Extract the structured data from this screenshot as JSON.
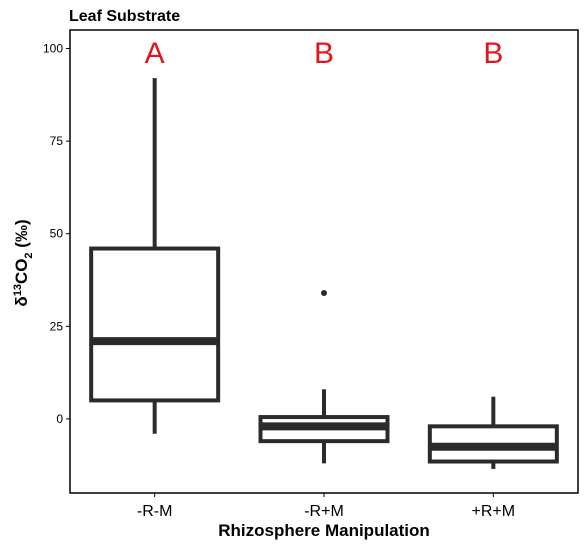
{
  "chart_data": {
    "type": "boxplot",
    "title": "Leaf Substrate",
    "xlabel": "Rhizosphere Manipulation",
    "ylabel": {
      "prefix": "δ",
      "sup": "13",
      "mid": "CO",
      "sub": "2",
      "suffix": " (‰)"
    },
    "ylim": [
      -20,
      105
    ],
    "yticks": [
      0,
      25,
      50,
      75,
      100
    ],
    "ytick_labels": [
      "0",
      "25",
      "50",
      "75",
      "100"
    ],
    "grid": false,
    "categories": [
      "-R-M",
      "-R+M",
      "+R+M"
    ],
    "boxes": [
      {
        "category": "-R-M",
        "whisker_low": -4,
        "q1": 5,
        "median": 21,
        "q3": 46,
        "whisker_high": 92,
        "outliers": [],
        "letter": "A"
      },
      {
        "category": "-R+M",
        "whisker_low": -12,
        "q1": -6,
        "median": -2,
        "q3": 0.5,
        "whisker_high": 8,
        "outliers": [
          34
        ],
        "letter": "B"
      },
      {
        "category": "+R+M",
        "whisker_low": -13.5,
        "q1": -11.5,
        "median": -7.5,
        "q3": -2,
        "whisker_high": 6,
        "outliers": [],
        "letter": "B"
      }
    ],
    "colors": {
      "box": "#2b2b2b",
      "letter": "#e3141b",
      "axis": "#000000"
    }
  }
}
